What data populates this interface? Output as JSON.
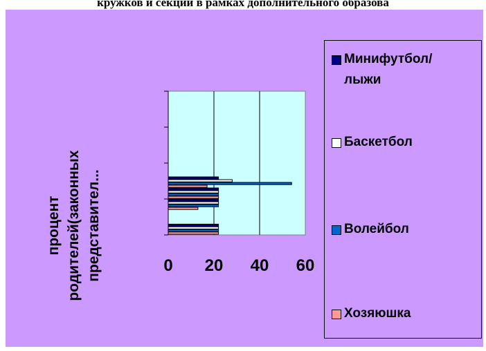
{
  "header": {
    "title": "кружков и секций в рамках дополнительного образова"
  },
  "chart_data": {
    "type": "bar",
    "orientation": "horizontal",
    "title": "кружков и секций в рамках дополнительного образова",
    "ylabel": "процент родителей(законных представител...",
    "xlabel": "",
    "xlim": [
      0,
      60
    ],
    "x_ticks": [
      "0",
      "20",
      "40",
      "60"
    ],
    "grid": true,
    "legend_position": "right",
    "plot_background": "#ccffff",
    "chart_background": "#cc99ff",
    "categories": [
      "",
      "",
      "",
      ""
    ],
    "series": [
      {
        "name": "Хозяюшка",
        "color": "#ff9999",
        "values": [
          22,
          13,
          22,
          17
        ]
      },
      {
        "name": "Волейбол",
        "color": "#0066cc",
        "values": [
          22,
          22,
          22,
          54
        ]
      },
      {
        "name": "Баскетбол",
        "color": "#ffffff",
        "values": [
          22,
          22,
          22,
          28
        ]
      },
      {
        "name": "Минифутбол/\nлыжи",
        "color": "#000080",
        "values": [
          22,
          22,
          22,
          22
        ]
      }
    ]
  }
}
